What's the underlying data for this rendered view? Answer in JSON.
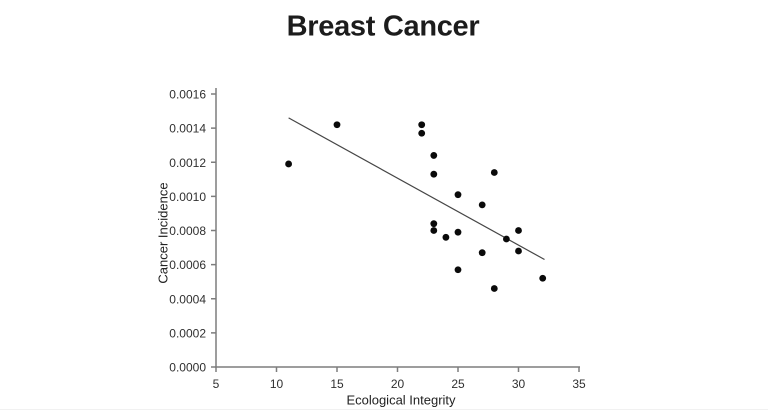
{
  "chart_data": {
    "type": "scatter",
    "title": "Breast Cancer",
    "xlabel": "Ecological Integrity",
    "ylabel": "Cancer Incidence",
    "xlim": [
      5,
      35
    ],
    "ylim": [
      0.0,
      0.0016
    ],
    "xtick_labels": [
      "5",
      "10",
      "15",
      "20",
      "25",
      "30",
      "35"
    ],
    "ytick_labels": [
      "0.0000",
      "0.0002",
      "0.0004",
      "0.0006",
      "0.0008",
      "0.0010",
      "0.0012",
      "0.0014",
      "0.0016"
    ],
    "grid": false,
    "legend": null,
    "series": [
      {
        "marker": "filled-circle",
        "points": [
          {
            "x": 11,
            "y": 0.00119
          },
          {
            "x": 15,
            "y": 0.00142
          },
          {
            "x": 22,
            "y": 0.00142
          },
          {
            "x": 22,
            "y": 0.00137
          },
          {
            "x": 23,
            "y": 0.00124
          },
          {
            "x": 23,
            "y": 0.00113
          },
          {
            "x": 28,
            "y": 0.00114
          },
          {
            "x": 25,
            "y": 0.00101
          },
          {
            "x": 27,
            "y": 0.00095
          },
          {
            "x": 23,
            "y": 0.00084
          },
          {
            "x": 23,
            "y": 0.0008
          },
          {
            "x": 24,
            "y": 0.00076
          },
          {
            "x": 25,
            "y": 0.00079
          },
          {
            "x": 29,
            "y": 0.00075
          },
          {
            "x": 30,
            "y": 0.0008
          },
          {
            "x": 30,
            "y": 0.00068
          },
          {
            "x": 27,
            "y": 0.00067
          },
          {
            "x": 25,
            "y": 0.00057
          },
          {
            "x": 28,
            "y": 0.00046
          },
          {
            "x": 32,
            "y": 0.00052
          }
        ]
      }
    ],
    "trendline": {
      "x1": 11.0,
      "y1": 0.00146,
      "x2": 32.15,
      "y2": 0.00063
    },
    "colors": {
      "point": "#0a0a0a",
      "trend_line": "#464646",
      "axis": "#7d7d7d",
      "tick_text": "#303030",
      "title_text": "#1c1c1c"
    }
  }
}
